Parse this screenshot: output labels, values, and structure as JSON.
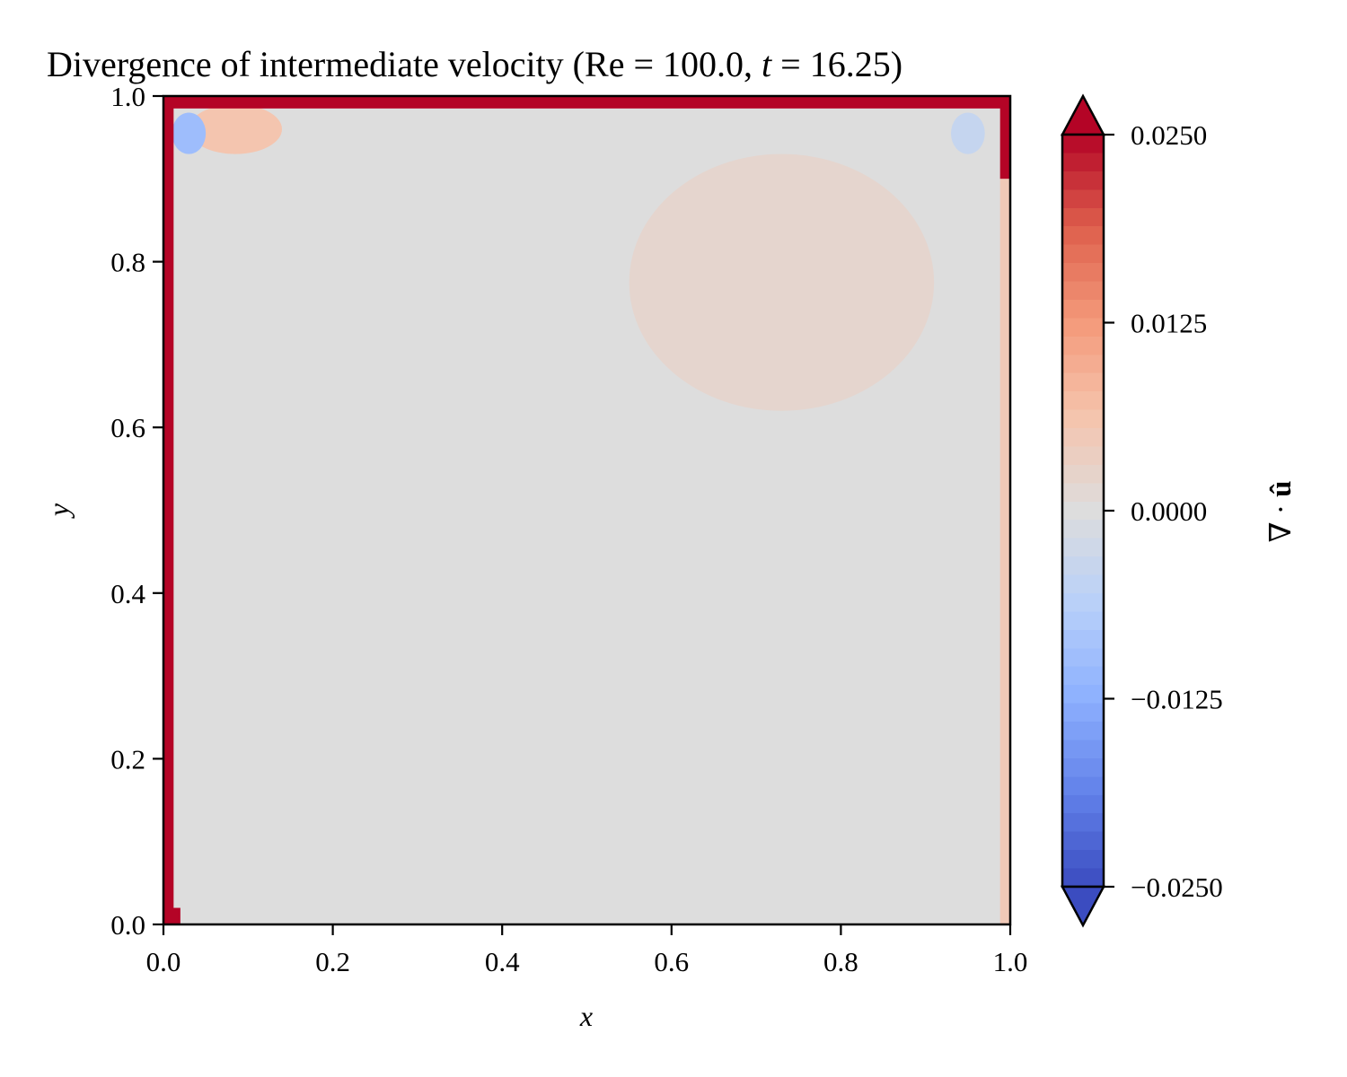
{
  "chart_data": {
    "type": "heatmap",
    "title": "Divergence of intermediate velocity (Re = 100.0, t = 16.25)",
    "title_parts": {
      "prefix": "Divergence of intermediate velocity (",
      "re_symbol": "Re",
      "equals": " = ",
      "re_value": "100.0",
      "separator": ", ",
      "t_symbol": "t",
      "t_value": "16.25",
      "suffix": ")"
    },
    "xlabel": "x",
    "ylabel": "y",
    "xlim": [
      0.0,
      1.0
    ],
    "ylim": [
      0.0,
      1.0
    ],
    "xticks": [
      "0.0",
      "0.2",
      "0.4",
      "0.6",
      "0.8",
      "1.0"
    ],
    "yticks": [
      "0.0",
      "0.2",
      "0.4",
      "0.6",
      "0.8",
      "1.0"
    ],
    "grid": false,
    "colormap": "coolwarm",
    "colorbar": {
      "label": "∇ · û",
      "label_parts": {
        "nabla": "∇",
        "dot": " · ",
        "u_hat": "û"
      },
      "range": [
        -0.025,
        0.025
      ],
      "ticks": [
        0.025,
        0.0125,
        0.0,
        -0.0125,
        -0.025
      ],
      "tick_labels": [
        "0.0250",
        "0.0125",
        "0.0000",
        "−0.0125",
        "−0.0250"
      ],
      "extend": "both",
      "levels": 41,
      "location": "right"
    },
    "background_value": 0.0,
    "features": [
      {
        "name": "positive-lobe-upper-right",
        "x_range": [
          0.55,
          0.91
        ],
        "y_range": [
          0.62,
          0.93
        ],
        "value": 0.002
      },
      {
        "name": "positive-patch-top-left",
        "x_range": [
          0.03,
          0.14
        ],
        "y_range": [
          0.93,
          0.99
        ],
        "value": 0.006
      },
      {
        "name": "negative-patch-top-left",
        "x_range": [
          0.01,
          0.05
        ],
        "y_range": [
          0.93,
          0.98
        ],
        "value": -0.01
      },
      {
        "name": "negative-patch-top-right",
        "x_range": [
          0.93,
          0.97
        ],
        "y_range": [
          0.93,
          0.98
        ],
        "value": -0.004
      },
      {
        "name": "top-wall-strip",
        "x_range": [
          0.0,
          1.0
        ],
        "y_range": [
          0.985,
          1.0
        ],
        "value": 0.025
      },
      {
        "name": "left-wall-strip",
        "x_range": [
          0.0,
          0.012
        ],
        "y_range": [
          0.0,
          1.0
        ],
        "value": 0.025
      },
      {
        "name": "right-wall-strip",
        "x_range": [
          0.988,
          1.0
        ],
        "y_range": [
          0.9,
          1.0
        ],
        "value": 0.025
      },
      {
        "name": "right-wall-weak-strip",
        "x_range": [
          0.988,
          1.0
        ],
        "y_range": [
          0.0,
          0.9
        ],
        "value": 0.005
      },
      {
        "name": "bottom-left-corner",
        "x_range": [
          0.0,
          0.02
        ],
        "y_range": [
          0.0,
          0.02
        ],
        "value": 0.025
      }
    ]
  }
}
